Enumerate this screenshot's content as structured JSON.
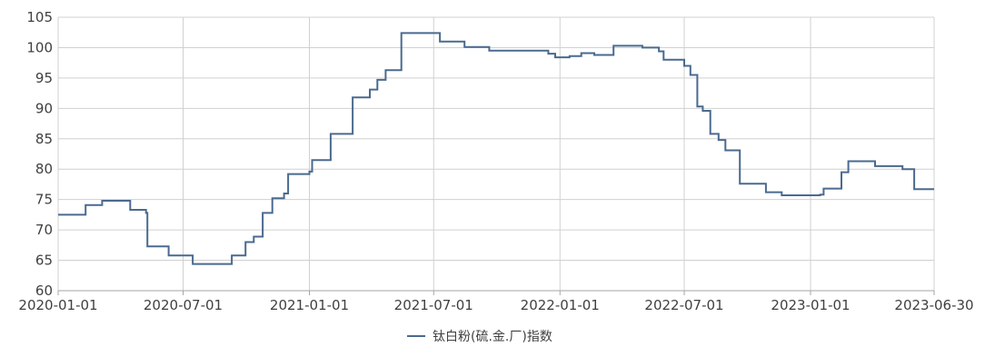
{
  "chart_data": {
    "type": "line",
    "title": "",
    "xlabel": "",
    "ylabel": "",
    "ylim": [
      60,
      105
    ],
    "yticks": [
      60,
      65,
      70,
      75,
      80,
      85,
      90,
      95,
      100,
      105
    ],
    "xlim": [
      "2020-01-01",
      "2023-06-30"
    ],
    "xticks": [
      "2020-01-01",
      "2020-07-01",
      "2021-01-01",
      "2021-07-01",
      "2022-01-01",
      "2022-07-01",
      "2023-01-01",
      "2023-06-30"
    ],
    "grid": true,
    "legend_position": "bottom-center",
    "series": [
      {
        "name": "钛白粉(硫.金.厂)指数",
        "color": "#4a6a8f",
        "step": true,
        "points": [
          [
            "2020-01-01",
            72.5
          ],
          [
            "2020-02-10",
            74.1
          ],
          [
            "2020-03-05",
            74.8
          ],
          [
            "2020-04-15",
            73.3
          ],
          [
            "2020-05-08",
            72.8
          ],
          [
            "2020-05-10",
            67.3
          ],
          [
            "2020-06-10",
            65.8
          ],
          [
            "2020-07-15",
            64.4
          ],
          [
            "2020-09-10",
            65.8
          ],
          [
            "2020-09-30",
            68.0
          ],
          [
            "2020-10-12",
            68.9
          ],
          [
            "2020-10-25",
            72.8
          ],
          [
            "2020-11-08",
            75.2
          ],
          [
            "2020-11-25",
            76.0
          ],
          [
            "2020-12-01",
            79.2
          ],
          [
            "2021-01-01",
            79.6
          ],
          [
            "2021-01-05",
            81.5
          ],
          [
            "2021-02-01",
            85.8
          ],
          [
            "2021-03-05",
            91.8
          ],
          [
            "2021-03-30",
            93.1
          ],
          [
            "2021-04-10",
            94.7
          ],
          [
            "2021-04-22",
            96.3
          ],
          [
            "2021-05-15",
            102.4
          ],
          [
            "2021-07-10",
            101.0
          ],
          [
            "2021-08-15",
            100.1
          ],
          [
            "2021-09-20",
            99.5
          ],
          [
            "2021-12-15",
            99.0
          ],
          [
            "2021-12-25",
            98.4
          ],
          [
            "2022-01-15",
            98.6
          ],
          [
            "2022-02-01",
            99.1
          ],
          [
            "2022-02-20",
            98.8
          ],
          [
            "2022-03-20",
            100.3
          ],
          [
            "2022-05-01",
            100.0
          ],
          [
            "2022-05-25",
            99.4
          ],
          [
            "2022-06-01",
            98.0
          ],
          [
            "2022-07-01",
            97.0
          ],
          [
            "2022-07-10",
            95.5
          ],
          [
            "2022-07-20",
            90.3
          ],
          [
            "2022-07-28",
            89.6
          ],
          [
            "2022-08-08",
            85.8
          ],
          [
            "2022-08-20",
            84.8
          ],
          [
            "2022-08-30",
            83.1
          ],
          [
            "2022-09-20",
            77.6
          ],
          [
            "2022-10-28",
            76.2
          ],
          [
            "2022-11-20",
            75.7
          ],
          [
            "2023-01-15",
            75.8
          ],
          [
            "2023-01-20",
            76.8
          ],
          [
            "2023-02-15",
            79.5
          ],
          [
            "2023-02-25",
            81.3
          ],
          [
            "2023-04-05",
            80.5
          ],
          [
            "2023-05-15",
            80.0
          ],
          [
            "2023-06-01",
            76.7
          ],
          [
            "2023-06-30",
            76.7
          ]
        ]
      }
    ]
  }
}
